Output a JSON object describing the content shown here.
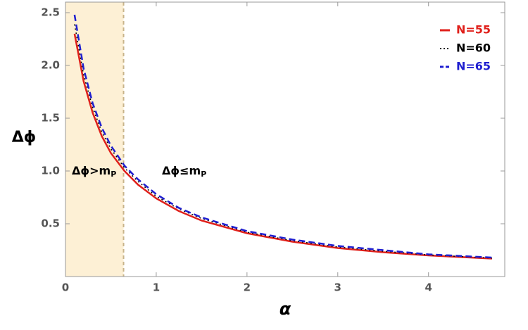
{
  "chart_data": {
    "type": "line",
    "x_label": "α",
    "y_label": "Δϕ",
    "x": [
      0.1,
      0.2,
      0.3,
      0.4,
      0.5,
      0.65,
      0.8,
      1.0,
      1.25,
      1.5,
      2.0,
      2.5,
      3.0,
      3.5,
      4.0,
      4.7
    ],
    "series": [
      {
        "name": "N=55",
        "color": "#e0201b",
        "dash": "solid",
        "values": [
          2.3,
          1.85,
          1.55,
          1.33,
          1.17,
          1.0,
          0.87,
          0.74,
          0.62,
          0.53,
          0.41,
          0.33,
          0.27,
          0.23,
          0.2,
          0.17
        ]
      },
      {
        "name": "N=60",
        "color": "#000000",
        "dash": "dotted",
        "values": [
          2.39,
          1.91,
          1.6,
          1.37,
          1.21,
          1.03,
          0.9,
          0.76,
          0.64,
          0.55,
          0.42,
          0.34,
          0.28,
          0.24,
          0.205,
          0.175
        ]
      },
      {
        "name": "N=65",
        "color": "#1f1fd0",
        "dash": "dashed",
        "values": [
          2.48,
          1.97,
          1.64,
          1.41,
          1.24,
          1.05,
          0.92,
          0.78,
          0.65,
          0.56,
          0.43,
          0.35,
          0.29,
          0.25,
          0.21,
          0.18
        ]
      }
    ],
    "xlim": [
      0,
      4.84
    ],
    "ylim": [
      0,
      2.6
    ],
    "xticks": [
      0,
      1,
      2,
      3,
      4
    ],
    "yticks": [
      0.5,
      {
        "value": 1,
        "label": "1.0"
      },
      1.5,
      {
        "value": 2,
        "label": "2.0"
      },
      2.5
    ],
    "shaded_region": [
      0,
      0.64
    ],
    "shade_color": "#fdf0d5",
    "annotations": [
      {
        "text": "Δϕ>m",
        "subscript": "P"
      },
      {
        "text": "Δϕ≤m",
        "subscript": "P"
      }
    ],
    "legend": "top-right",
    "grid": false
  }
}
